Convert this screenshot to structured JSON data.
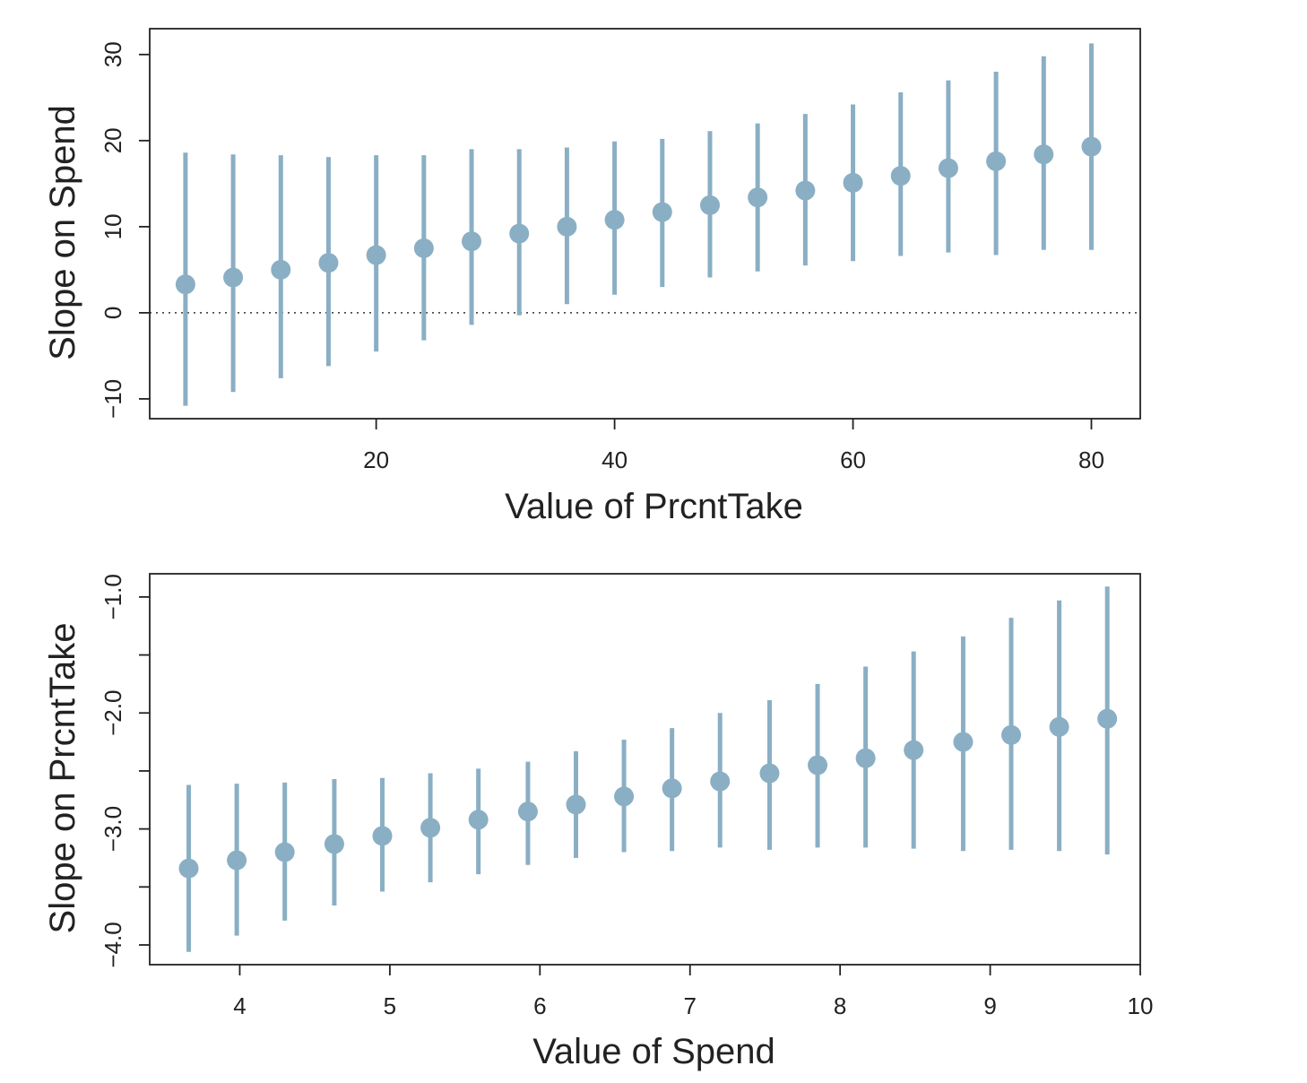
{
  "chart_data": [
    {
      "type": "scatter",
      "style": "point-range",
      "xlabel": "Value of PrcntTake",
      "ylabel": "Slope on Spend",
      "xticks": [
        20,
        40,
        60,
        80
      ],
      "yticks": [
        -10,
        0,
        10,
        20,
        30
      ],
      "xlim": [
        1,
        84.1
      ],
      "ylim": [
        -12.3,
        33
      ],
      "reference_line": {
        "y": 0,
        "style": "dotted"
      },
      "color": "#8aafc4",
      "points": [
        {
          "x": 4,
          "y": 3.3,
          "low": -10.8,
          "high": 18.6
        },
        {
          "x": 8,
          "y": 4.1,
          "low": -9.2,
          "high": 18.4
        },
        {
          "x": 12,
          "y": 5.0,
          "low": -7.6,
          "high": 18.3
        },
        {
          "x": 16,
          "y": 5.8,
          "low": -6.2,
          "high": 18.1
        },
        {
          "x": 20,
          "y": 6.7,
          "low": -4.5,
          "high": 18.3
        },
        {
          "x": 24,
          "y": 7.5,
          "low": -3.2,
          "high": 18.3
        },
        {
          "x": 28,
          "y": 8.3,
          "low": -1.4,
          "high": 19.0
        },
        {
          "x": 32,
          "y": 9.2,
          "low": -0.3,
          "high": 19.0
        },
        {
          "x": 36,
          "y": 10.0,
          "low": 1.0,
          "high": 19.2
        },
        {
          "x": 40,
          "y": 10.8,
          "low": 2.1,
          "high": 19.9
        },
        {
          "x": 44,
          "y": 11.7,
          "low": 3.0,
          "high": 20.2
        },
        {
          "x": 48,
          "y": 12.5,
          "low": 4.1,
          "high": 21.1
        },
        {
          "x": 52,
          "y": 13.4,
          "low": 4.8,
          "high": 22.0
        },
        {
          "x": 56,
          "y": 14.2,
          "low": 5.5,
          "high": 23.1
        },
        {
          "x": 60,
          "y": 15.1,
          "low": 6.0,
          "high": 24.2
        },
        {
          "x": 64,
          "y": 15.9,
          "low": 6.6,
          "high": 25.6
        },
        {
          "x": 68,
          "y": 16.8,
          "low": 7.0,
          "high": 27.0
        },
        {
          "x": 72,
          "y": 17.6,
          "low": 6.7,
          "high": 28.0
        },
        {
          "x": 76,
          "y": 18.4,
          "low": 7.3,
          "high": 29.8
        },
        {
          "x": 80,
          "y": 19.3,
          "low": 7.3,
          "high": 31.3
        }
      ]
    },
    {
      "type": "scatter",
      "style": "point-range",
      "xlabel": "Value of Spend",
      "ylabel": "Slope on PrcntTake",
      "xticks": [
        4,
        5,
        6,
        7,
        8,
        9,
        10
      ],
      "yticks": [
        -4.0,
        -3.0,
        -2.0,
        -1.0
      ],
      "ytick_labels": [
        "−4.0",
        "−3.0",
        "−2.0",
        "−1.0"
      ],
      "yminor_ticks": [
        -3.5,
        -2.5,
        -1.5
      ],
      "xlim": [
        3.4,
        10.0
      ],
      "ylim": [
        -4.17,
        -0.8
      ],
      "color": "#8aafc4",
      "points": [
        {
          "x": 3.66,
          "y": -3.34,
          "low": -4.06,
          "high": -2.62
        },
        {
          "x": 3.98,
          "y": -3.27,
          "low": -3.92,
          "high": -2.61
        },
        {
          "x": 4.3,
          "y": -3.2,
          "low": -3.79,
          "high": -2.6
        },
        {
          "x": 4.63,
          "y": -3.13,
          "low": -3.66,
          "high": -2.57
        },
        {
          "x": 4.95,
          "y": -3.06,
          "low": -3.54,
          "high": -2.56
        },
        {
          "x": 5.27,
          "y": -2.99,
          "low": -3.46,
          "high": -2.52
        },
        {
          "x": 5.59,
          "y": -2.92,
          "low": -3.39,
          "high": -2.48
        },
        {
          "x": 5.92,
          "y": -2.85,
          "low": -3.31,
          "high": -2.42
        },
        {
          "x": 6.24,
          "y": -2.79,
          "low": -3.25,
          "high": -2.33
        },
        {
          "x": 6.56,
          "y": -2.72,
          "low": -3.2,
          "high": -2.23
        },
        {
          "x": 6.88,
          "y": -2.65,
          "low": -3.19,
          "high": -2.13
        },
        {
          "x": 7.2,
          "y": -2.59,
          "low": -3.16,
          "high": -2.0
        },
        {
          "x": 7.53,
          "y": -2.52,
          "low": -3.18,
          "high": -1.89
        },
        {
          "x": 7.85,
          "y": -2.45,
          "low": -3.16,
          "high": -1.75
        },
        {
          "x": 8.17,
          "y": -2.39,
          "low": -3.16,
          "high": -1.6
        },
        {
          "x": 8.49,
          "y": -2.32,
          "low": -3.17,
          "high": -1.47
        },
        {
          "x": 8.82,
          "y": -2.25,
          "low": -3.19,
          "high": -1.34
        },
        {
          "x": 9.14,
          "y": -2.19,
          "low": -3.18,
          "high": -1.18
        },
        {
          "x": 9.46,
          "y": -2.12,
          "low": -3.19,
          "high": -1.03
        },
        {
          "x": 9.78,
          "y": -2.05,
          "low": -3.22,
          "high": -0.91
        }
      ]
    }
  ]
}
